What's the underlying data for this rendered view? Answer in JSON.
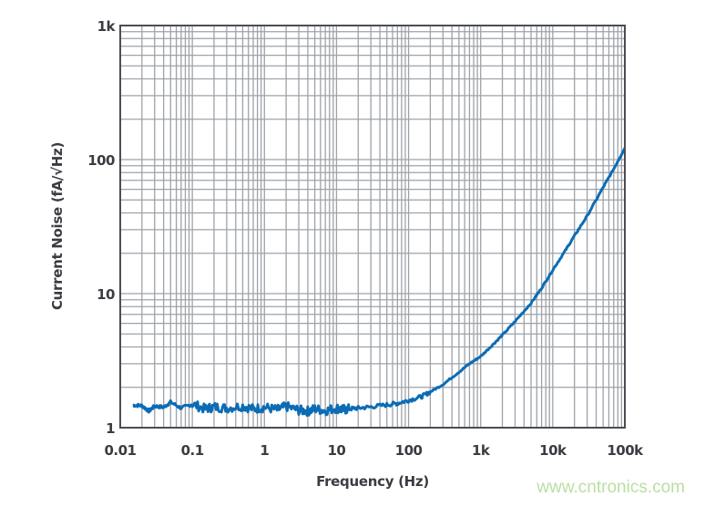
{
  "chart_data": {
    "type": "line",
    "title": "",
    "xlabel": "Frequency (Hz)",
    "ylabel": "Current Noise (fA/√Hz)",
    "xscale": "log",
    "yscale": "log",
    "xlim": [
      0.01,
      100000
    ],
    "ylim": [
      1,
      1000
    ],
    "xticks": [
      0.01,
      0.1,
      1,
      10,
      100,
      1000,
      10000,
      100000
    ],
    "xtick_labels": [
      "0.01",
      "0.1",
      "1",
      "10",
      "100",
      "1k",
      "10k",
      "100k"
    ],
    "yticks": [
      1,
      10,
      100,
      1000
    ],
    "ytick_labels": [
      "1",
      "10",
      "100",
      "1k"
    ],
    "grid": true,
    "legend": "none",
    "series": [
      {
        "color": "#0b6cb5",
        "x": [
          0.015,
          0.02,
          0.025,
          0.03,
          0.04,
          0.05,
          0.07,
          0.1,
          0.15,
          0.2,
          0.3,
          0.5,
          0.7,
          1,
          1.5,
          2,
          3,
          4,
          5,
          7,
          10,
          12,
          15,
          20,
          30,
          50,
          70,
          100,
          150,
          200,
          300,
          500,
          700,
          1000,
          1500,
          2000,
          3000,
          5000,
          7000,
          10000,
          15000,
          20000,
          30000,
          50000,
          70000,
          100000
        ],
        "y": [
          1.47,
          1.46,
          1.33,
          1.45,
          1.42,
          1.55,
          1.4,
          1.5,
          1.38,
          1.43,
          1.4,
          1.45,
          1.38,
          1.42,
          1.36,
          1.44,
          1.35,
          1.33,
          1.38,
          1.34,
          1.4,
          1.36,
          1.38,
          1.4,
          1.43,
          1.48,
          1.52,
          1.6,
          1.7,
          1.85,
          2.1,
          2.6,
          3.0,
          3.4,
          4.2,
          4.9,
          6.2,
          8.5,
          11,
          15,
          21,
          27,
          38,
          62,
          85,
          122
        ]
      }
    ]
  },
  "watermark": "www.cntronics.com"
}
